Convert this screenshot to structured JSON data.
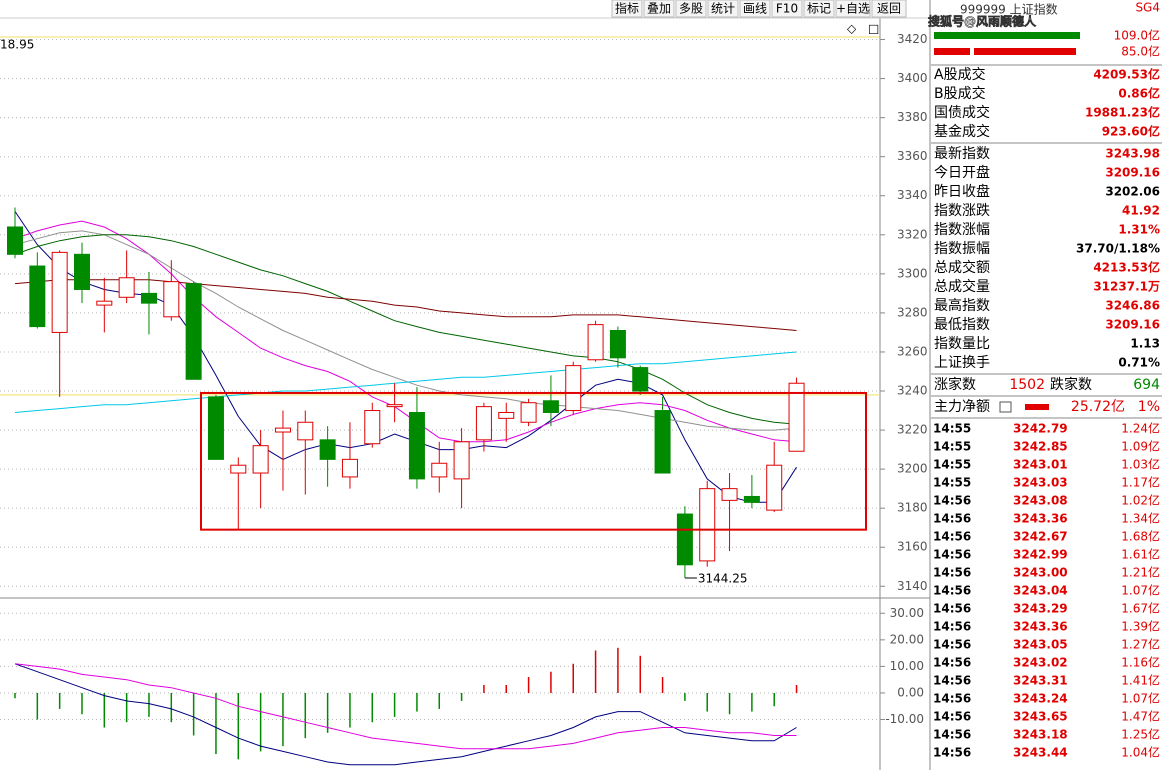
{
  "toolbar": [
    "指标",
    "叠加",
    "多股",
    "统计",
    "画线",
    "F10",
    "标记",
    "+自选",
    "返回"
  ],
  "corner_value": "18.95",
  "watermark": "搜狐号@风雨顺德人",
  "quote_panel": {
    "header": "999999 上证指数",
    "tag": "SG4",
    "bar_labels": [
      "109.0亿",
      "85.0亿"
    ],
    "turnover": [
      {
        "label": "A股成交",
        "value": "4209.53亿",
        "color": "#e00000"
      },
      {
        "label": "B股成交",
        "value": "0.86亿",
        "color": "#e00000"
      },
      {
        "label": "国债成交",
        "value": "19881.23亿",
        "color": "#e00000"
      },
      {
        "label": "基金成交",
        "value": "923.60亿",
        "color": "#e00000"
      }
    ],
    "stats": [
      {
        "label": "最新指数",
        "value": "3243.98",
        "color": "#e00000"
      },
      {
        "label": "今日开盘",
        "value": "3209.16",
        "color": "#e00000"
      },
      {
        "label": "昨日收盘",
        "value": "3202.06",
        "color": "#000000"
      },
      {
        "label": "指数涨跌",
        "value": "41.92",
        "color": "#e00000"
      },
      {
        "label": "指数涨幅",
        "value": "1.31%",
        "color": "#e00000"
      },
      {
        "label": "指数振幅",
        "value": "37.70/1.18%",
        "color": "#000000"
      },
      {
        "label": "总成交额",
        "value": "4213.53亿",
        "color": "#e00000"
      },
      {
        "label": "总成交量",
        "value": "31237.1万",
        "color": "#e00000"
      },
      {
        "label": "最高指数",
        "value": "3246.86",
        "color": "#e00000"
      },
      {
        "label": "最低指数",
        "value": "3209.16",
        "color": "#e00000"
      },
      {
        "label": "指数量比",
        "value": "1.13",
        "color": "#000000"
      },
      {
        "label": "上证换手",
        "value": "0.71%",
        "color": "#000000"
      }
    ],
    "breadth": {
      "up_label": "涨家数",
      "up_value": "1502",
      "down_label": "跌家数",
      "down_value": "694"
    },
    "main_flow": {
      "label": "主力净额",
      "value": "25.72亿",
      "pct": "1%"
    },
    "ticks": [
      [
        "14:55",
        "3242.79",
        "1.24亿"
      ],
      [
        "14:55",
        "3242.85",
        "1.09亿"
      ],
      [
        "14:55",
        "3243.01",
        "1.03亿"
      ],
      [
        "14:55",
        "3243.03",
        "1.17亿"
      ],
      [
        "14:56",
        "3243.08",
        "1.02亿"
      ],
      [
        "14:56",
        "3243.36",
        "1.34亿"
      ],
      [
        "14:56",
        "3242.67",
        "1.68亿"
      ],
      [
        "14:56",
        "3242.99",
        "1.61亿"
      ],
      [
        "14:56",
        "3243.00",
        "1.21亿"
      ],
      [
        "14:56",
        "3243.04",
        "1.07亿"
      ],
      [
        "14:56",
        "3243.29",
        "1.67亿"
      ],
      [
        "14:56",
        "3243.36",
        "1.39亿"
      ],
      [
        "14:56",
        "3243.05",
        "1.27亿"
      ],
      [
        "14:56",
        "3243.02",
        "1.16亿"
      ],
      [
        "14:56",
        "3243.31",
        "1.41亿"
      ],
      [
        "14:56",
        "3243.24",
        "1.07亿"
      ],
      [
        "14:56",
        "3243.65",
        "1.47亿"
      ],
      [
        "14:56",
        "3243.18",
        "1.25亿"
      ],
      [
        "14:56",
        "3243.44",
        "1.04亿"
      ]
    ]
  },
  "chart_data": [
    {
      "type": "candlestick",
      "up_color": "#e00000",
      "down_color": "#008a00",
      "ylim": [
        3134,
        3430
      ],
      "yticks": [
        3140,
        3160,
        3180,
        3200,
        3220,
        3240,
        3260,
        3280,
        3300,
        3320,
        3340,
        3360,
        3380,
        3400,
        3420
      ],
      "grid": true,
      "open": [
        3324,
        3304,
        3270,
        3310,
        3284,
        3288,
        3290,
        3278,
        3295,
        3237,
        3198,
        3198,
        3219,
        3215,
        3215,
        3196,
        3213,
        3232,
        3229,
        3196,
        3195,
        3215,
        3226,
        3224,
        3235,
        3230,
        3256,
        3271,
        3252,
        3230,
        3177,
        3153,
        3184,
        3186,
        3179,
        3209.16
      ],
      "high": [
        3334,
        3311,
        3312,
        3316,
        3298,
        3312,
        3301,
        3307,
        3296,
        3238,
        3206,
        3220,
        3230,
        3230,
        3222,
        3224,
        3234,
        3244,
        3242,
        3214,
        3221,
        3234,
        3234,
        3236,
        3248,
        3255,
        3276,
        3273,
        3253,
        3237,
        3181,
        3194,
        3198,
        3197,
        3214,
        3246.86
      ],
      "low": [
        3308,
        3272,
        3237,
        3285,
        3270,
        3285,
        3269,
        3276,
        3246,
        3205,
        3169,
        3180,
        3189,
        3187,
        3191,
        3190,
        3211,
        3224,
        3190,
        3188,
        3180,
        3209,
        3214,
        3222,
        3222,
        3228,
        3255,
        3252,
        3238,
        3198,
        3144.25,
        3150,
        3158,
        3180,
        3178,
        3209.16
      ],
      "close": [
        3310,
        3273,
        3311,
        3292,
        3286,
        3298,
        3285,
        3296,
        3246,
        3205,
        3202,
        3212,
        3221,
        3224,
        3205,
        3205,
        3230,
        3233,
        3195,
        3203,
        3214,
        3232,
        3229,
        3234,
        3229,
        3253,
        3274,
        3257,
        3240,
        3198,
        3151,
        3190,
        3190,
        3183,
        3202,
        3243.98
      ],
      "low_annotation_index": 30,
      "reference_line": 3238,
      "highlight": [
        3169,
        3239
      ],
      "overlays": [
        {
          "color": "#000080",
          "values": [
            3332,
            3315,
            3303,
            3296,
            3292,
            3290,
            3289,
            3284,
            3268,
            3248,
            3227,
            3212,
            3205,
            3210,
            3213,
            3211,
            3213,
            3218,
            3214,
            3210,
            3210,
            3212,
            3211,
            3217,
            3225,
            3234,
            3243,
            3246,
            3244,
            3238,
            3215,
            3195,
            3186,
            3183,
            3183,
            3201
          ]
        },
        {
          "color": "#e000e0",
          "values": [
            3318,
            3322,
            3325,
            3327,
            3324,
            3318,
            3310,
            3300,
            3288,
            3278,
            3270,
            3262,
            3257,
            3253,
            3250,
            3245,
            3237,
            3232,
            3224,
            3216,
            3214,
            3214,
            3215,
            3219,
            3224,
            3228,
            3231,
            3233,
            3234,
            3233,
            3230,
            3225,
            3221,
            3218,
            3215,
            3214
          ]
        },
        {
          "color": "#909090",
          "values": [
            3315,
            3318,
            3321,
            3322,
            3320,
            3315,
            3310,
            3303,
            3296,
            3290,
            3283,
            3277,
            3271,
            3266,
            3261,
            3256,
            3251,
            3247,
            3243,
            3240,
            3238,
            3237,
            3236,
            3234,
            3233,
            3232,
            3231,
            3230,
            3228,
            3226,
            3224,
            3222,
            3221,
            3220,
            3220,
            3221
          ]
        },
        {
          "color": "#006400",
          "values": [
            3310,
            3314,
            3317,
            3319,
            3320,
            3320,
            3319,
            3317,
            3314,
            3310,
            3306,
            3302,
            3299,
            3295,
            3291,
            3286,
            3281,
            3276,
            3273,
            3270,
            3268,
            3266,
            3264,
            3262,
            3260,
            3258,
            3257,
            3255,
            3251,
            3246,
            3239,
            3233,
            3229,
            3226,
            3224,
            3223
          ]
        },
        {
          "color": "#800000",
          "values": [
            3295,
            3296,
            3297,
            3297,
            3297,
            3297,
            3297,
            3296,
            3295,
            3294,
            3293,
            3292,
            3291,
            3290,
            3288,
            3287,
            3286,
            3284,
            3283,
            3281,
            3280,
            3279,
            3278,
            3278,
            3278,
            3279,
            3279,
            3279,
            3278,
            3277,
            3276,
            3275,
            3274,
            3273,
            3272,
            3271
          ]
        },
        {
          "color": "#00c8e8",
          "values": [
            3229,
            3230,
            3231,
            3232,
            3233,
            3233,
            3234,
            3235,
            3236,
            3237,
            3238,
            3239,
            3240,
            3240,
            3241,
            3242,
            3243,
            3244,
            3245,
            3246,
            3247,
            3247,
            3248,
            3249,
            3250,
            3251,
            3252,
            3253,
            3254,
            3254,
            3255,
            3256,
            3257,
            3258,
            3259,
            3260
          ]
        }
      ]
    },
    {
      "type": "macd",
      "up_color": "#e00000",
      "down_color": "#008a00",
      "ylim": [
        -29,
        35
      ],
      "yticks": [
        {
          "value": 30,
          "label": "30.00"
        },
        {
          "value": 20,
          "label": "20.00"
        },
        {
          "value": 10,
          "label": "10.00"
        },
        {
          "value": 0,
          "label": "0.00"
        },
        {
          "value": -10,
          "label": "-10.00"
        }
      ],
      "grid": true,
      "values": [
        -2,
        -10,
        -6,
        -8,
        -13,
        -11,
        -9,
        -11,
        -16,
        -23,
        -25,
        -22,
        -20,
        -17,
        -15,
        -13,
        -11,
        -9,
        -7,
        -6,
        -3,
        3,
        3,
        6,
        8,
        11,
        16,
        17,
        14,
        6,
        -3,
        -7,
        -8,
        -7,
        -5,
        3
      ],
      "lines": [
        {
          "color": "#000080",
          "values": [
            11,
            8,
            5,
            2,
            -1,
            -3,
            -4,
            -6,
            -9,
            -13,
            -17,
            -20,
            -22,
            -24,
            -26,
            -27,
            -27,
            -27,
            -26,
            -25,
            -24,
            -22,
            -20,
            -18,
            -16,
            -13,
            -9,
            -7,
            -7,
            -11,
            -15,
            -16,
            -17,
            -18,
            -18,
            -13
          ]
        },
        {
          "color": "#e000e0",
          "values": [
            11,
            10,
            9,
            7,
            6,
            5,
            3,
            2,
            0,
            -2,
            -5,
            -7,
            -9,
            -11,
            -13,
            -15,
            -17,
            -18,
            -19,
            -20,
            -21,
            -21,
            -21,
            -21,
            -20,
            -19,
            -17,
            -15,
            -14,
            -13,
            -13,
            -14,
            -15,
            -15,
            -16,
            -16
          ]
        }
      ]
    }
  ]
}
